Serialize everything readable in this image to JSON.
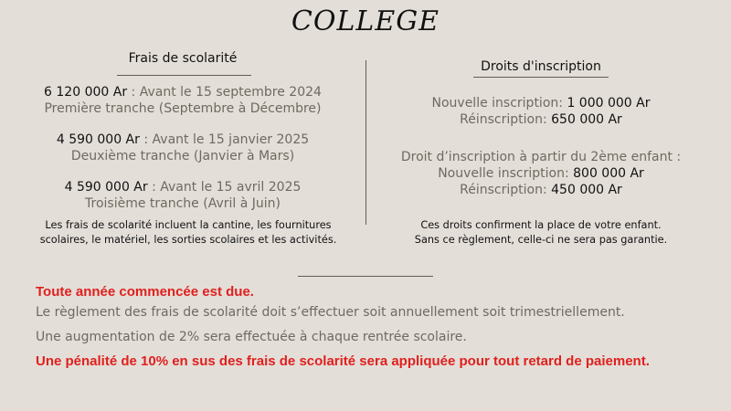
{
  "title": "COLLEGE",
  "left": {
    "heading": "Frais de scolarité",
    "tranches": [
      {
        "amount": "6 120 000 Ar",
        "deadline": " : Avant le 15 septembre 2024",
        "label": "Première tranche (Septembre à Décembre)"
      },
      {
        "amount": "4 590 000 Ar",
        "deadline": " : Avant le 15 janvier 2025",
        "label": "Deuxième tranche (Janvier à Mars)"
      },
      {
        "amount": "4 590 000 Ar",
        "deadline": " : Avant le 15 avril 2025",
        "label": "Troisième tranche (Avril à Juin)"
      }
    ],
    "note_line1": "Les frais de scolarité incluent la cantine, les fournitures",
    "note_line2": "scolaires, le matériel, les sorties scolaires et les activités."
  },
  "right": {
    "heading": "Droits d'inscription",
    "new_label": "Nouvelle inscription: ",
    "new_value": "1 000 000 Ar",
    "re_label": "Réinscription: ",
    "re_value": "650 000 Ar",
    "second_child_heading": "Droit d’inscription à partir du 2ème enfant :",
    "new2_label": "Nouvelle inscription: ",
    "new2_value": "800 000 Ar",
    "re2_label": "Réinscription: ",
    "re2_value": "450 000 Ar",
    "note_line1": "Ces droits confirment la place de votre enfant.",
    "note_line2": "Sans ce règlement, celle-ci ne sera pas garantie."
  },
  "bottom": {
    "due": "Toute année commencée est due.",
    "payment": "Le règlement des frais de scolarité doit s’effectuer soit annuellement soit trimestriellement.",
    "increase": "Une augmentation de 2% sera effectuée à chaque rentrée scolaire.",
    "penalty": "Une pénalité de 10% en sus des frais de scolarité sera appliquée pour tout retard de paiement."
  },
  "colors": {
    "background": "#e3ded8",
    "grey_text": "#6e6a60",
    "alert_red": "#e0201e"
  }
}
